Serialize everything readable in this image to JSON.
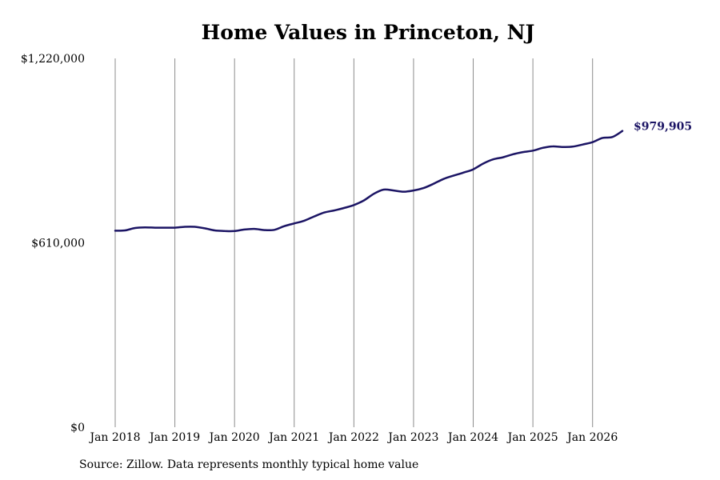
{
  "chart_data": {
    "type": "line",
    "title": "Home Values in Princeton, NJ",
    "source": "Source: Zillow. Data represents monthly typical home value",
    "ylim": [
      0,
      1220000
    ],
    "yticks": [
      {
        "value": 0,
        "label": "$0"
      },
      {
        "value": 610000,
        "label": "$610,000"
      },
      {
        "value": 1220000,
        "label": "$1,220,000"
      }
    ],
    "xlim": [
      "2018-01",
      "2026-07"
    ],
    "xticks": [
      {
        "value": "2018-01",
        "label": "Jan 2018"
      },
      {
        "value": "2019-01",
        "label": "Jan 2019"
      },
      {
        "value": "2020-01",
        "label": "Jan 2020"
      },
      {
        "value": "2021-01",
        "label": "Jan 2021"
      },
      {
        "value": "2022-01",
        "label": "Jan 2022"
      },
      {
        "value": "2023-01",
        "label": "Jan 2023"
      },
      {
        "value": "2024-01",
        "label": "Jan 2024"
      },
      {
        "value": "2025-01",
        "label": "Jan 2025"
      },
      {
        "value": "2026-01",
        "label": "Jan 2026"
      }
    ],
    "grid": "vertical",
    "line_color": "#1b1464",
    "end_label": "$979,905",
    "series": [
      {
        "x": [
          "2018-01",
          "2018-03",
          "2018-05",
          "2018-07",
          "2018-09",
          "2018-11",
          "2019-01",
          "2019-03",
          "2019-05",
          "2019-07",
          "2019-09",
          "2019-11",
          "2020-01",
          "2020-03",
          "2020-05",
          "2020-07",
          "2020-09",
          "2020-11",
          "2021-01",
          "2021-03",
          "2021-05",
          "2021-07",
          "2021-09",
          "2021-11",
          "2022-01",
          "2022-03",
          "2022-05",
          "2022-07",
          "2022-09",
          "2022-11",
          "2023-01",
          "2023-03",
          "2023-05",
          "2023-07",
          "2023-09",
          "2023-11",
          "2024-01",
          "2024-03",
          "2024-05",
          "2024-07",
          "2024-09",
          "2024-11",
          "2025-01",
          "2025-03",
          "2025-05",
          "2025-07",
          "2025-09",
          "2025-11",
          "2026-01",
          "2026-03",
          "2026-05",
          "2026-07"
        ],
        "values": [
          650000,
          651000,
          659000,
          661000,
          660000,
          660000,
          660000,
          663000,
          663000,
          658000,
          651000,
          649000,
          649000,
          654000,
          656000,
          652000,
          653000,
          665000,
          674000,
          683000,
          697000,
          710000,
          717000,
          725000,
          735000,
          750000,
          772000,
          786000,
          783000,
          779000,
          783000,
          791000,
          805000,
          821000,
          832000,
          842000,
          853000,
          872000,
          886000,
          893000,
          903000,
          910000,
          915000,
          924000,
          929000,
          927000,
          928000,
          935000,
          943000,
          957000,
          960000,
          979905
        ]
      }
    ]
  }
}
